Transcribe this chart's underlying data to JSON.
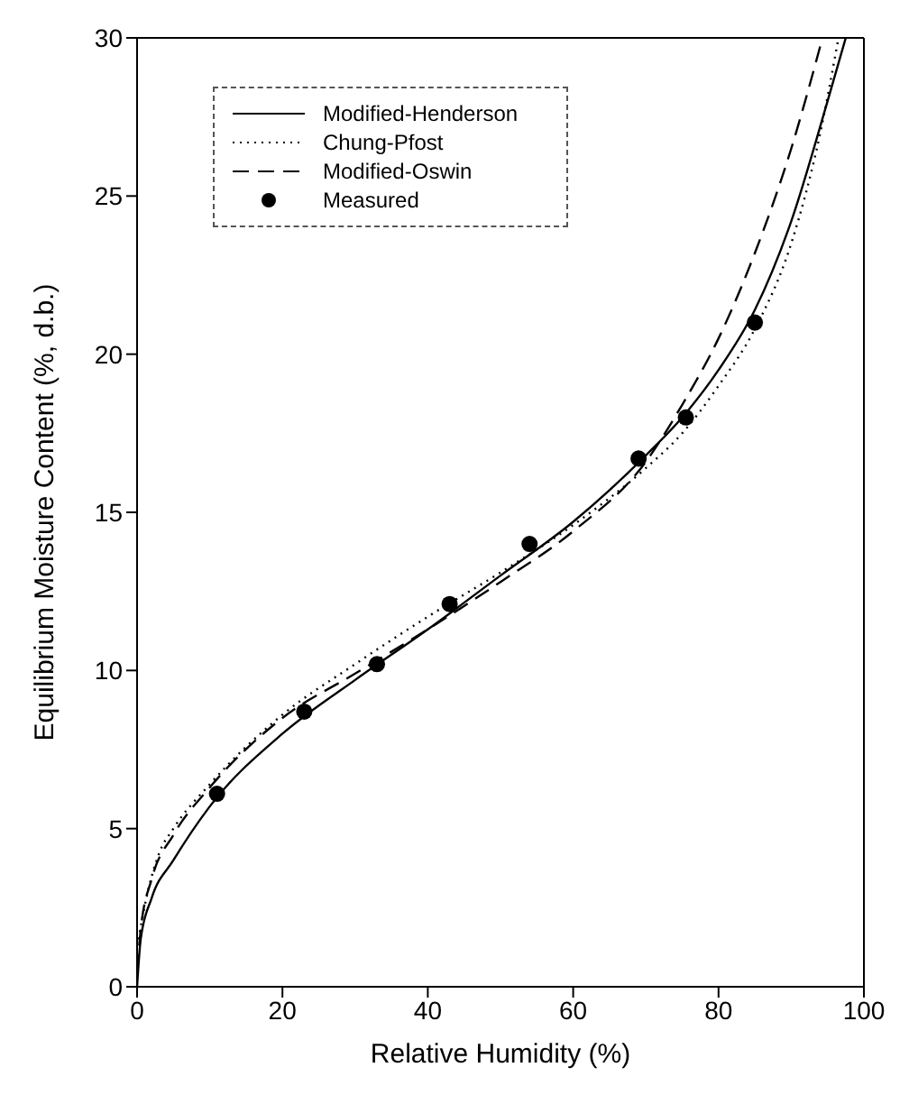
{
  "chart_data": {
    "type": "line",
    "xlabel": "Relative Humidity (%)",
    "ylabel": "Equilibrium Moisture Content (%, d.b.)",
    "xlim": [
      0,
      100
    ],
    "xticks": [
      0,
      20,
      40,
      60,
      80,
      100
    ],
    "ylim": [
      0,
      30
    ],
    "yticks": [
      0,
      5,
      10,
      15,
      20,
      25,
      30
    ],
    "grid": false,
    "legend": "top left",
    "series": [
      {
        "name": "Modified-Henderson",
        "color": "#000000",
        "line_style": "solid",
        "marker": "none",
        "x": [
          0,
          0.5,
          2,
          5,
          10,
          20,
          30,
          40,
          50,
          60,
          70,
          75,
          80,
          85,
          90,
          95,
          97.5
        ],
        "values": [
          0,
          1.5,
          2.8,
          4.0,
          5.7,
          8.0,
          9.7,
          11.3,
          13.0,
          14.7,
          16.8,
          18.0,
          19.5,
          21.4,
          24.2,
          28.0,
          30
        ]
      },
      {
        "name": "Chung-Pfost",
        "color": "#000000",
        "line_style": "dotted",
        "marker": "none",
        "x": [
          0.2,
          1,
          3,
          5,
          10,
          20,
          30,
          40,
          50,
          60,
          70,
          75,
          80,
          85,
          90,
          94,
          96.5
        ],
        "values": [
          1.5,
          2.5,
          4.2,
          5.0,
          6.4,
          8.6,
          10.2,
          11.7,
          13.1,
          14.6,
          16.4,
          17.5,
          19.0,
          20.8,
          23.5,
          27.0,
          30
        ]
      },
      {
        "name": "Modified-Oswin",
        "color": "#000000",
        "line_style": "dashed",
        "marker": "none",
        "x": [
          0,
          0.5,
          2,
          5,
          10,
          20,
          30,
          40,
          50,
          60,
          70,
          75,
          80,
          85,
          90,
          94.3
        ],
        "values": [
          0.5,
          1.8,
          3.4,
          4.8,
          6.3,
          8.5,
          9.9,
          11.3,
          12.8,
          14.4,
          16.6,
          18.4,
          20.5,
          23.2,
          26.5,
          30
        ]
      },
      {
        "name": "Measured",
        "type": "scatter",
        "color": "#000000",
        "marker": "circle",
        "x": [
          11,
          23,
          33,
          43,
          54,
          69,
          75.5,
          85
        ],
        "values": [
          6.1,
          8.7,
          10.2,
          12.1,
          14.0,
          16.7,
          18.0,
          21.0
        ]
      }
    ]
  }
}
